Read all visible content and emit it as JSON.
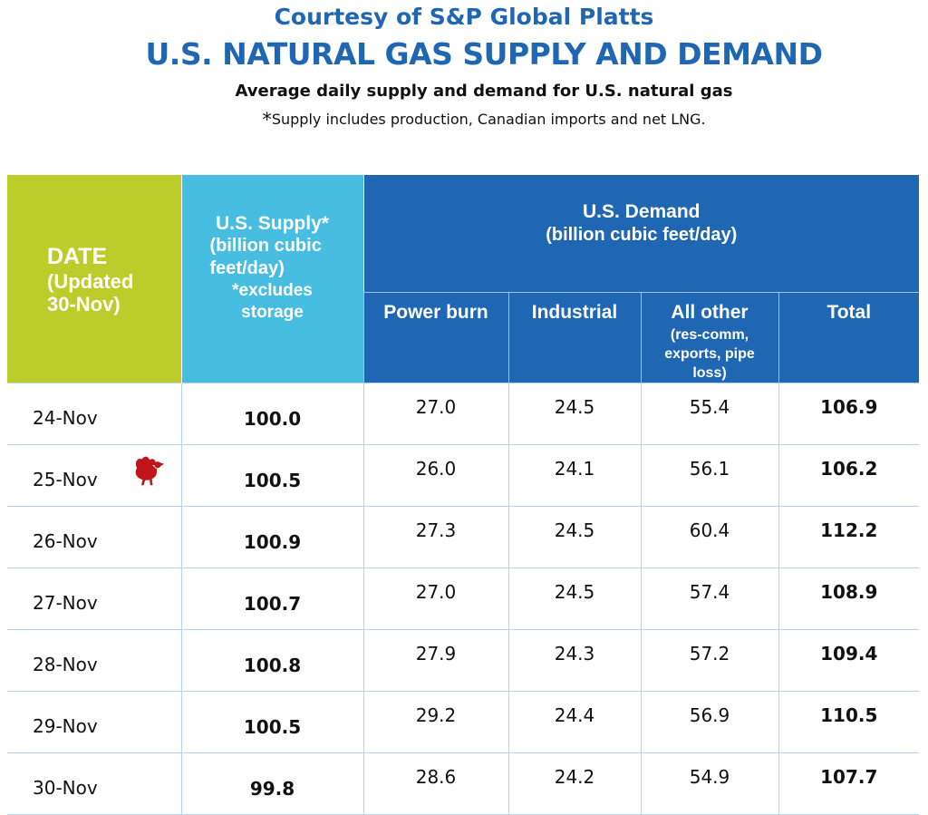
{
  "header": {
    "courtesy": "Courtesy of S&P Global Platts",
    "title": "U.S. NATURAL GAS SUPPLY AND DEMAND",
    "subtitle": "Average daily supply and demand for U.S. natural gas",
    "note_asterisk": "*",
    "note_text": "Supply includes production, Canadian imports and net LNG."
  },
  "columns": {
    "date_line1": "DATE",
    "date_line2": "(Updated",
    "date_line3": "30-Nov)",
    "supply_line1": "U.S. Supply*",
    "supply_line2": "(billion cubic",
    "supply_line3": "feet/day)",
    "supply_line4": "*excludes",
    "supply_line5": "storage",
    "demand_line1": "U.S. Demand",
    "demand_line2": "(billion cubic feet/day)",
    "power_burn": "Power burn",
    "industrial": "Industrial",
    "all_other": "All other",
    "all_other_sub1": "(res-comm,",
    "all_other_sub2": "exports, pipe",
    "all_other_sub3": "loss)",
    "total": "Total"
  },
  "rows": [
    {
      "date": "24-Nov",
      "supply": "100.0",
      "power_burn": "27.0",
      "industrial": "24.5",
      "all_other": "55.4",
      "total": "106.9"
    },
    {
      "date": "25-Nov",
      "supply": "100.5",
      "power_burn": "26.0",
      "industrial": "24.1",
      "all_other": "56.1",
      "total": "106.2",
      "icon": "turkey-icon"
    },
    {
      "date": "26-Nov",
      "supply": "100.9",
      "power_burn": "27.3",
      "industrial": "24.5",
      "all_other": "60.4",
      "total": "112.2"
    },
    {
      "date": "27-Nov",
      "supply": "100.7",
      "power_burn": "27.0",
      "industrial": "24.5",
      "all_other": "57.4",
      "total": "108.9"
    },
    {
      "date": "28-Nov",
      "supply": "100.8",
      "power_burn": "27.9",
      "industrial": "24.3",
      "all_other": "57.2",
      "total": "109.4"
    },
    {
      "date": "29-Nov",
      "supply": "100.5",
      "power_burn": "29.2",
      "industrial": "24.4",
      "all_other": "56.9",
      "total": "110.5"
    },
    {
      "date": "30-Nov",
      "supply": "99.8",
      "power_burn": "28.6",
      "industrial": "24.2",
      "all_other": "54.9",
      "total": "107.7"
    }
  ],
  "colors": {
    "title_blue": "#1f66b3",
    "date_header": "#bccc2a",
    "supply_header": "#47bde1",
    "demand_header": "#1f66b3",
    "turkey": "#c0161b"
  }
}
